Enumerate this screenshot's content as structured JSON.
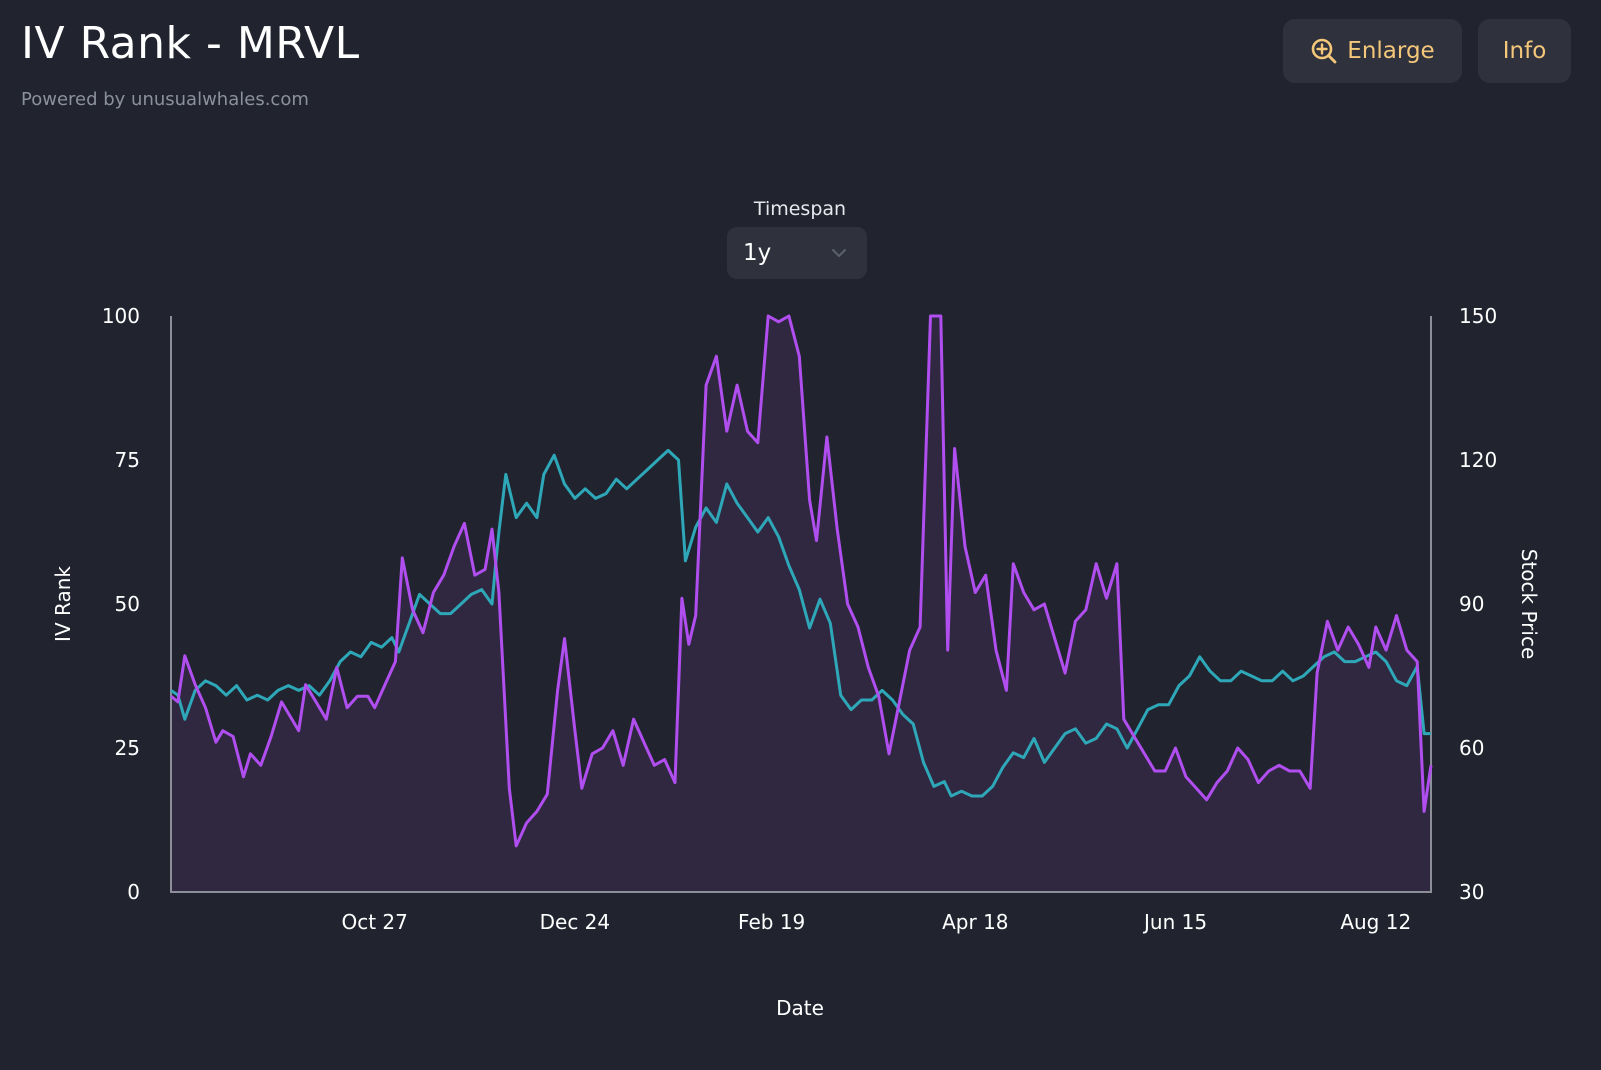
{
  "header": {
    "title": "IV Rank - MRVL",
    "subtitle": "Powered by unusualwhales.com",
    "enlarge_label": "Enlarge",
    "info_label": "Info"
  },
  "controls": {
    "timespan_label": "Timespan",
    "timespan_value": "1y"
  },
  "colors": {
    "background": "#21242f",
    "button_bg": "#2f323c",
    "accent_text": "#f4c77a",
    "iv_rank_line": "#b04ef0",
    "iv_rank_fill": "#302840",
    "stock_price_line": "#2ea8b8",
    "axis": "#8c8f98"
  },
  "chart_data": {
    "type": "line",
    "xlabel": "Date",
    "ylabel_left": "IV Rank",
    "ylabel_right": "Stock Price",
    "ylim_left": [
      0,
      100
    ],
    "ylim_right": [
      30,
      150
    ],
    "yticks_left": [
      0,
      25,
      50,
      75,
      100
    ],
    "yticks_right": [
      30,
      60,
      90,
      120,
      150
    ],
    "x_range": [
      "2023-08-29",
      "2024-08-28"
    ],
    "xticks": [
      {
        "date": "2023-10-27",
        "label": "Oct 27"
      },
      {
        "date": "2023-12-24",
        "label": "Dec 24"
      },
      {
        "date": "2024-02-19",
        "label": "Feb 19"
      },
      {
        "date": "2024-04-18",
        "label": "Apr 18"
      },
      {
        "date": "2024-06-15",
        "label": "Jun 15"
      },
      {
        "date": "2024-08-12",
        "label": "Aug 12"
      }
    ],
    "series": [
      {
        "axis": "left",
        "fill": true,
        "points": [
          [
            "2023-08-29",
            34
          ],
          [
            "2023-08-31",
            33
          ],
          [
            "2023-09-02",
            41
          ],
          [
            "2023-09-05",
            36
          ],
          [
            "2023-09-08",
            32
          ],
          [
            "2023-09-11",
            26
          ],
          [
            "2023-09-13",
            28
          ],
          [
            "2023-09-16",
            27
          ],
          [
            "2023-09-19",
            20
          ],
          [
            "2023-09-21",
            24
          ],
          [
            "2023-09-24",
            22
          ],
          [
            "2023-09-27",
            27
          ],
          [
            "2023-09-30",
            33
          ],
          [
            "2023-10-02",
            31
          ],
          [
            "2023-10-05",
            28
          ],
          [
            "2023-10-07",
            36
          ],
          [
            "2023-10-10",
            33
          ],
          [
            "2023-10-13",
            30
          ],
          [
            "2023-10-16",
            39
          ],
          [
            "2023-10-19",
            32
          ],
          [
            "2023-10-22",
            34
          ],
          [
            "2023-10-25",
            34
          ],
          [
            "2023-10-27",
            32
          ],
          [
            "2023-10-30",
            36
          ],
          [
            "2023-11-02",
            40
          ],
          [
            "2023-11-04",
            58
          ],
          [
            "2023-11-07",
            49
          ],
          [
            "2023-11-10",
            45
          ],
          [
            "2023-11-13",
            52
          ],
          [
            "2023-11-16",
            55
          ],
          [
            "2023-11-19",
            60
          ],
          [
            "2023-11-22",
            64
          ],
          [
            "2023-11-25",
            55
          ],
          [
            "2023-11-28",
            56
          ],
          [
            "2023-11-30",
            63
          ],
          [
            "2023-12-02",
            52
          ],
          [
            "2023-12-05",
            18
          ],
          [
            "2023-12-07",
            8
          ],
          [
            "2023-12-10",
            12
          ],
          [
            "2023-12-13",
            14
          ],
          [
            "2023-12-16",
            17
          ],
          [
            "2023-12-19",
            35
          ],
          [
            "2023-12-21",
            44
          ],
          [
            "2023-12-24",
            28
          ],
          [
            "2023-12-26",
            18
          ],
          [
            "2023-12-29",
            24
          ],
          [
            "2024-01-01",
            25
          ],
          [
            "2024-01-04",
            28
          ],
          [
            "2024-01-07",
            22
          ],
          [
            "2024-01-10",
            30
          ],
          [
            "2024-01-13",
            26
          ],
          [
            "2024-01-16",
            22
          ],
          [
            "2024-01-19",
            23
          ],
          [
            "2024-01-22",
            19
          ],
          [
            "2024-01-24",
            51
          ],
          [
            "2024-01-26",
            43
          ],
          [
            "2024-01-28",
            48
          ],
          [
            "2024-01-31",
            88
          ],
          [
            "2024-02-03",
            93
          ],
          [
            "2024-02-06",
            80
          ],
          [
            "2024-02-09",
            88
          ],
          [
            "2024-02-12",
            80
          ],
          [
            "2024-02-15",
            78
          ],
          [
            "2024-02-18",
            100
          ],
          [
            "2024-02-21",
            99
          ],
          [
            "2024-02-24",
            100
          ],
          [
            "2024-02-27",
            93
          ],
          [
            "2024-03-01",
            68
          ],
          [
            "2024-03-03",
            61
          ],
          [
            "2024-03-06",
            79
          ],
          [
            "2024-03-09",
            63
          ],
          [
            "2024-03-12",
            50
          ],
          [
            "2024-03-15",
            46
          ],
          [
            "2024-03-18",
            39
          ],
          [
            "2024-03-21",
            34
          ],
          [
            "2024-03-24",
            24
          ],
          [
            "2024-03-27",
            33
          ],
          [
            "2024-03-30",
            42
          ],
          [
            "2024-04-02",
            46
          ],
          [
            "2024-04-05",
            100
          ],
          [
            "2024-04-08",
            100
          ],
          [
            "2024-04-10",
            42
          ],
          [
            "2024-04-12",
            77
          ],
          [
            "2024-04-15",
            60
          ],
          [
            "2024-04-18",
            52
          ],
          [
            "2024-04-21",
            55
          ],
          [
            "2024-04-24",
            42
          ],
          [
            "2024-04-27",
            35
          ],
          [
            "2024-04-29",
            57
          ],
          [
            "2024-05-02",
            52
          ],
          [
            "2024-05-05",
            49
          ],
          [
            "2024-05-08",
            50
          ],
          [
            "2024-05-11",
            44
          ],
          [
            "2024-05-14",
            38
          ],
          [
            "2024-05-17",
            47
          ],
          [
            "2024-05-20",
            49
          ],
          [
            "2024-05-23",
            57
          ],
          [
            "2024-05-26",
            51
          ],
          [
            "2024-05-29",
            57
          ],
          [
            "2024-05-31",
            30
          ],
          [
            "2024-06-03",
            27
          ],
          [
            "2024-06-06",
            24
          ],
          [
            "2024-06-09",
            21
          ],
          [
            "2024-06-12",
            21
          ],
          [
            "2024-06-15",
            25
          ],
          [
            "2024-06-18",
            20
          ],
          [
            "2024-06-21",
            18
          ],
          [
            "2024-06-24",
            16
          ],
          [
            "2024-06-27",
            19
          ],
          [
            "2024-06-30",
            21
          ],
          [
            "2024-07-03",
            25
          ],
          [
            "2024-07-06",
            23
          ],
          [
            "2024-07-09",
            19
          ],
          [
            "2024-07-12",
            21
          ],
          [
            "2024-07-15",
            22
          ],
          [
            "2024-07-18",
            21
          ],
          [
            "2024-07-21",
            21
          ],
          [
            "2024-07-24",
            18
          ],
          [
            "2024-07-26",
            38
          ],
          [
            "2024-07-29",
            47
          ],
          [
            "2024-08-01",
            42
          ],
          [
            "2024-08-04",
            46
          ],
          [
            "2024-08-07",
            43
          ],
          [
            "2024-08-10",
            39
          ],
          [
            "2024-08-12",
            46
          ],
          [
            "2024-08-15",
            42
          ],
          [
            "2024-08-18",
            48
          ],
          [
            "2024-08-21",
            42
          ],
          [
            "2024-08-24",
            40
          ],
          [
            "2024-08-26",
            14
          ],
          [
            "2024-08-28",
            22
          ]
        ]
      },
      {
        "axis": "right",
        "fill": false,
        "points": [
          [
            "2023-08-29",
            72
          ],
          [
            "2023-08-31",
            71
          ],
          [
            "2023-09-02",
            66
          ],
          [
            "2023-09-05",
            72
          ],
          [
            "2023-09-08",
            74
          ],
          [
            "2023-09-11",
            73
          ],
          [
            "2023-09-14",
            71
          ],
          [
            "2023-09-17",
            73
          ],
          [
            "2023-09-20",
            70
          ],
          [
            "2023-09-23",
            71
          ],
          [
            "2023-09-26",
            70
          ],
          [
            "2023-09-29",
            72
          ],
          [
            "2023-10-02",
            73
          ],
          [
            "2023-10-05",
            72
          ],
          [
            "2023-10-08",
            73
          ],
          [
            "2023-10-11",
            71
          ],
          [
            "2023-10-14",
            74
          ],
          [
            "2023-10-17",
            78
          ],
          [
            "2023-10-20",
            80
          ],
          [
            "2023-10-23",
            79
          ],
          [
            "2023-10-26",
            82
          ],
          [
            "2023-10-29",
            81
          ],
          [
            "2023-11-01",
            83
          ],
          [
            "2023-11-03",
            80
          ],
          [
            "2023-11-06",
            86
          ],
          [
            "2023-11-09",
            92
          ],
          [
            "2023-11-12",
            90
          ],
          [
            "2023-11-15",
            88
          ],
          [
            "2023-11-18",
            88
          ],
          [
            "2023-11-21",
            90
          ],
          [
            "2023-11-24",
            92
          ],
          [
            "2023-11-27",
            93
          ],
          [
            "2023-11-30",
            90
          ],
          [
            "2023-12-01",
            98
          ],
          [
            "2023-12-02",
            105
          ],
          [
            "2023-12-04",
            117
          ],
          [
            "2023-12-07",
            108
          ],
          [
            "2023-12-10",
            111
          ],
          [
            "2023-12-13",
            108
          ],
          [
            "2023-12-15",
            117
          ],
          [
            "2023-12-18",
            121
          ],
          [
            "2023-12-21",
            115
          ],
          [
            "2023-12-24",
            112
          ],
          [
            "2023-12-27",
            114
          ],
          [
            "2023-12-30",
            112
          ],
          [
            "2024-01-02",
            113
          ],
          [
            "2024-01-05",
            116
          ],
          [
            "2024-01-08",
            114
          ],
          [
            "2024-01-11",
            116
          ],
          [
            "2024-01-14",
            118
          ],
          [
            "2024-01-17",
            120
          ],
          [
            "2024-01-20",
            122
          ],
          [
            "2024-01-23",
            120
          ],
          [
            "2024-01-25",
            99
          ],
          [
            "2024-01-28",
            106
          ],
          [
            "2024-01-31",
            110
          ],
          [
            "2024-02-03",
            107
          ],
          [
            "2024-02-06",
            115
          ],
          [
            "2024-02-09",
            111
          ],
          [
            "2024-02-12",
            108
          ],
          [
            "2024-02-15",
            105
          ],
          [
            "2024-02-18",
            108
          ],
          [
            "2024-02-21",
            104
          ],
          [
            "2024-02-24",
            98
          ],
          [
            "2024-02-27",
            93
          ],
          [
            "2024-03-01",
            85
          ],
          [
            "2024-03-04",
            91
          ],
          [
            "2024-03-07",
            86
          ],
          [
            "2024-03-10",
            71
          ],
          [
            "2024-03-13",
            68
          ],
          [
            "2024-03-16",
            70
          ],
          [
            "2024-03-19",
            70
          ],
          [
            "2024-03-22",
            72
          ],
          [
            "2024-03-25",
            70
          ],
          [
            "2024-03-28",
            67
          ],
          [
            "2024-03-31",
            65
          ],
          [
            "2024-04-03",
            57
          ],
          [
            "2024-04-06",
            52
          ],
          [
            "2024-04-09",
            53
          ],
          [
            "2024-04-11",
            50
          ],
          [
            "2024-04-14",
            51
          ],
          [
            "2024-04-17",
            50
          ],
          [
            "2024-04-20",
            50
          ],
          [
            "2024-04-23",
            52
          ],
          [
            "2024-04-26",
            56
          ],
          [
            "2024-04-29",
            59
          ],
          [
            "2024-05-02",
            58
          ],
          [
            "2024-05-05",
            62
          ],
          [
            "2024-05-08",
            57
          ],
          [
            "2024-05-11",
            60
          ],
          [
            "2024-05-14",
            63
          ],
          [
            "2024-05-17",
            64
          ],
          [
            "2024-05-20",
            61
          ],
          [
            "2024-05-23",
            62
          ],
          [
            "2024-05-26",
            65
          ],
          [
            "2024-05-29",
            64
          ],
          [
            "2024-06-01",
            60
          ],
          [
            "2024-06-04",
            64
          ],
          [
            "2024-06-07",
            68
          ],
          [
            "2024-06-10",
            69
          ],
          [
            "2024-06-13",
            69
          ],
          [
            "2024-06-16",
            73
          ],
          [
            "2024-06-19",
            75
          ],
          [
            "2024-06-22",
            79
          ],
          [
            "2024-06-25",
            76
          ],
          [
            "2024-06-28",
            74
          ],
          [
            "2024-07-01",
            74
          ],
          [
            "2024-07-04",
            76
          ],
          [
            "2024-07-07",
            75
          ],
          [
            "2024-07-10",
            74
          ],
          [
            "2024-07-13",
            74
          ],
          [
            "2024-07-16",
            76
          ],
          [
            "2024-07-19",
            74
          ],
          [
            "2024-07-22",
            75
          ],
          [
            "2024-07-25",
            77
          ],
          [
            "2024-07-28",
            79
          ],
          [
            "2024-07-31",
            80
          ],
          [
            "2024-08-03",
            78
          ],
          [
            "2024-08-06",
            78
          ],
          [
            "2024-08-09",
            79
          ],
          [
            "2024-08-12",
            80
          ],
          [
            "2024-08-15",
            78
          ],
          [
            "2024-08-18",
            74
          ],
          [
            "2024-08-21",
            73
          ],
          [
            "2024-08-24",
            77
          ],
          [
            "2024-08-26",
            63
          ],
          [
            "2024-08-28",
            63
          ]
        ]
      }
    ]
  }
}
